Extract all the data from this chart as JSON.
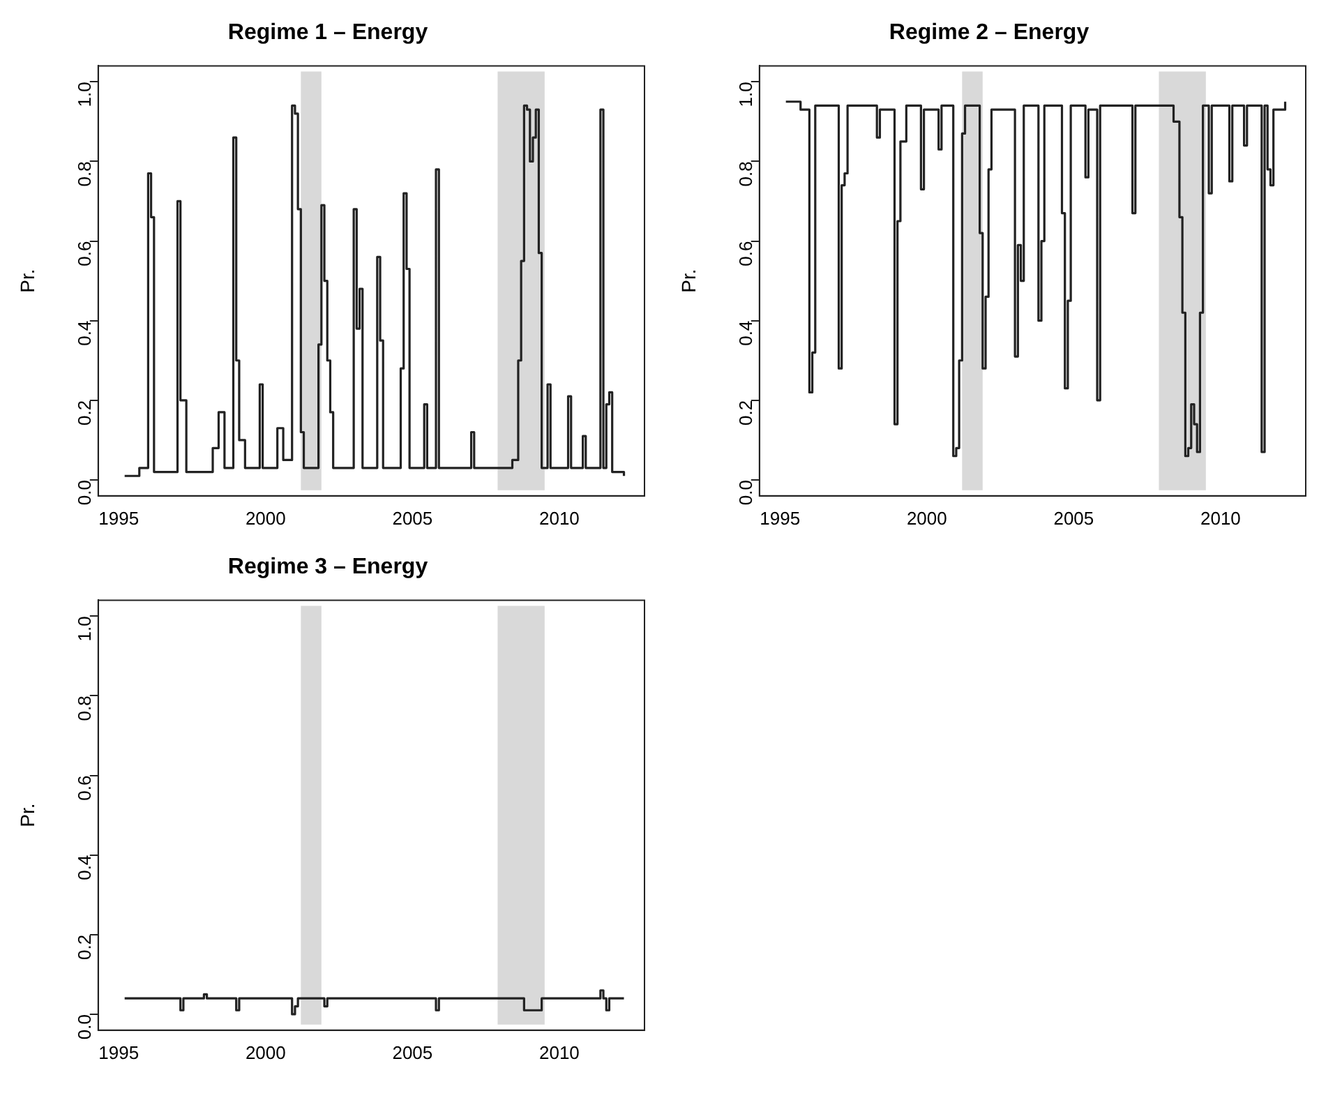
{
  "chart_data": [
    {
      "type": "step",
      "title": "Regime 1 – Energy",
      "ylabel": "Pr.",
      "xlim": [
        1994.3,
        2012.9
      ],
      "ylim": [
        -0.04,
        1.04
      ],
      "xticks": [
        1995,
        2000,
        2005,
        2010
      ],
      "yticks": [
        {
          "value": 0,
          "label": "0.0"
        },
        {
          "value": 0.2,
          "label": "0.2"
        },
        {
          "value": 0.4,
          "label": "0.4"
        },
        {
          "value": 0.6,
          "label": "0.6"
        },
        {
          "value": 0.8,
          "label": "0.8"
        },
        {
          "value": 1,
          "label": "1.0"
        }
      ],
      "grid": false,
      "legend": false,
      "bands": [
        {
          "axis": "x",
          "from": 2001.2,
          "to": 2001.9,
          "color": "#d9d9d9"
        },
        {
          "axis": "x",
          "from": 2007.9,
          "to": 2009.5,
          "color": "#d9d9d9"
        }
      ],
      "series": [
        {
          "color": "#222222",
          "x": [
            1995.2,
            1995.7,
            1996.0,
            1996.1,
            1996.2,
            1997.0,
            1997.1,
            1997.3,
            1998.2,
            1998.4,
            1998.6,
            1998.9,
            1999.0,
            1999.1,
            1999.3,
            1999.8,
            1999.9,
            2000.4,
            2000.6,
            2000.9,
            2001.0,
            2001.1,
            2001.2,
            2001.3,
            2001.8,
            2001.9,
            2002.0,
            2002.1,
            2002.2,
            2002.3,
            2003.0,
            2003.1,
            2003.2,
            2003.3,
            2003.8,
            2003.9,
            2004.0,
            2004.6,
            2004.7,
            2004.8,
            2004.9,
            2005.4,
            2005.5,
            2005.8,
            2005.9,
            2007.0,
            2007.1,
            2008.4,
            2008.6,
            2008.7,
            2008.8,
            2008.9,
            2009.0,
            2009.1,
            2009.2,
            2009.3,
            2009.4,
            2009.6,
            2009.7,
            2010.3,
            2010.4,
            2010.8,
            2010.9,
            2011.4,
            2011.5,
            2011.6,
            2011.7,
            2011.8,
            2012.2
          ],
          "values": [
            0.01,
            0.03,
            0.77,
            0.66,
            0.02,
            0.7,
            0.2,
            0.02,
            0.08,
            0.17,
            0.03,
            0.86,
            0.3,
            0.1,
            0.03,
            0.24,
            0.03,
            0.13,
            0.05,
            0.94,
            0.92,
            0.68,
            0.12,
            0.03,
            0.34,
            0.69,
            0.5,
            0.3,
            0.17,
            0.03,
            0.68,
            0.38,
            0.48,
            0.03,
            0.56,
            0.35,
            0.03,
            0.28,
            0.72,
            0.53,
            0.03,
            0.19,
            0.03,
            0.78,
            0.03,
            0.12,
            0.03,
            0.05,
            0.3,
            0.55,
            0.94,
            0.93,
            0.8,
            0.86,
            0.93,
            0.57,
            0.03,
            0.24,
            0.03,
            0.21,
            0.03,
            0.11,
            0.03,
            0.93,
            0.03,
            0.19,
            0.22,
            0.02,
            0.01
          ]
        }
      ]
    },
    {
      "type": "step",
      "title": "Regime 2 – Energy",
      "ylabel": "Pr.",
      "xlim": [
        1994.3,
        2012.9
      ],
      "ylim": [
        -0.04,
        1.04
      ],
      "xticks": [
        1995,
        2000,
        2005,
        2010
      ],
      "yticks": [
        {
          "value": 0,
          "label": "0.0"
        },
        {
          "value": 0.2,
          "label": "0.2"
        },
        {
          "value": 0.4,
          "label": "0.4"
        },
        {
          "value": 0.6,
          "label": "0.6"
        },
        {
          "value": 0.8,
          "label": "0.8"
        },
        {
          "value": 1,
          "label": "1.0"
        }
      ],
      "grid": false,
      "legend": false,
      "bands": [
        {
          "axis": "x",
          "from": 2001.2,
          "to": 2001.9,
          "color": "#d9d9d9"
        },
        {
          "axis": "x",
          "from": 2007.9,
          "to": 2009.5,
          "color": "#d9d9d9"
        }
      ],
      "series": [
        {
          "color": "#222222",
          "x": [
            1995.2,
            1995.7,
            1996.0,
            1996.1,
            1996.2,
            1997.0,
            1997.1,
            1997.2,
            1997.3,
            1998.3,
            1998.4,
            1998.9,
            1999.0,
            1999.1,
            1999.3,
            1999.8,
            1999.9,
            2000.4,
            2000.5,
            2000.9,
            2001.0,
            2001.1,
            2001.2,
            2001.3,
            2001.8,
            2001.9,
            2002.0,
            2002.1,
            2002.2,
            2003.0,
            2003.1,
            2003.2,
            2003.3,
            2003.8,
            2003.9,
            2004.0,
            2004.6,
            2004.7,
            2004.8,
            2004.9,
            2005.4,
            2005.5,
            2005.8,
            2005.9,
            2007.0,
            2007.1,
            2008.4,
            2008.6,
            2008.7,
            2008.8,
            2008.9,
            2009.0,
            2009.1,
            2009.2,
            2009.3,
            2009.4,
            2009.6,
            2009.7,
            2010.3,
            2010.4,
            2010.8,
            2010.9,
            2011.4,
            2011.5,
            2011.6,
            2011.7,
            2011.8,
            2012.2
          ],
          "values": [
            0.95,
            0.93,
            0.22,
            0.32,
            0.94,
            0.28,
            0.74,
            0.77,
            0.94,
            0.86,
            0.93,
            0.14,
            0.65,
            0.85,
            0.94,
            0.73,
            0.93,
            0.83,
            0.94,
            0.06,
            0.08,
            0.3,
            0.87,
            0.94,
            0.62,
            0.28,
            0.46,
            0.78,
            0.93,
            0.31,
            0.59,
            0.5,
            0.94,
            0.4,
            0.6,
            0.94,
            0.67,
            0.23,
            0.45,
            0.94,
            0.76,
            0.93,
            0.2,
            0.94,
            0.67,
            0.94,
            0.9,
            0.66,
            0.42,
            0.06,
            0.08,
            0.19,
            0.14,
            0.07,
            0.42,
            0.94,
            0.72,
            0.94,
            0.75,
            0.94,
            0.84,
            0.94,
            0.07,
            0.94,
            0.78,
            0.74,
            0.93,
            0.95
          ]
        }
      ]
    },
    {
      "type": "step",
      "title": "Regime 3 – Energy",
      "ylabel": "Pr.",
      "xlim": [
        1994.3,
        2012.9
      ],
      "ylim": [
        -0.04,
        1.04
      ],
      "xticks": [
        1995,
        2000,
        2005,
        2010
      ],
      "yticks": [
        {
          "value": 0,
          "label": "0.0"
        },
        {
          "value": 0.2,
          "label": "0.2"
        },
        {
          "value": 0.4,
          "label": "0.4"
        },
        {
          "value": 0.6,
          "label": "0.6"
        },
        {
          "value": 0.8,
          "label": "0.8"
        },
        {
          "value": 1,
          "label": "1.0"
        }
      ],
      "grid": false,
      "legend": false,
      "bands": [
        {
          "axis": "x",
          "from": 2001.2,
          "to": 2001.9,
          "color": "#d9d9d9"
        },
        {
          "axis": "x",
          "from": 2007.9,
          "to": 2009.5,
          "color": "#d9d9d9"
        }
      ],
      "series": [
        {
          "color": "#222222",
          "x": [
            1995.2,
            1997.1,
            1997.2,
            1997.9,
            1998.0,
            1999.0,
            1999.1,
            2000.9,
            2001.0,
            2001.1,
            2002.0,
            2002.1,
            2005.8,
            2005.9,
            2008.8,
            2009.3,
            2009.4,
            2011.4,
            2011.5,
            2011.6,
            2011.7,
            2012.2
          ],
          "values": [
            0.04,
            0.01,
            0.04,
            0.05,
            0.04,
            0.01,
            0.04,
            0.0,
            0.02,
            0.04,
            0.02,
            0.04,
            0.01,
            0.04,
            0.01,
            0.01,
            0.04,
            0.06,
            0.04,
            0.01,
            0.04,
            0.04
          ]
        }
      ]
    }
  ]
}
